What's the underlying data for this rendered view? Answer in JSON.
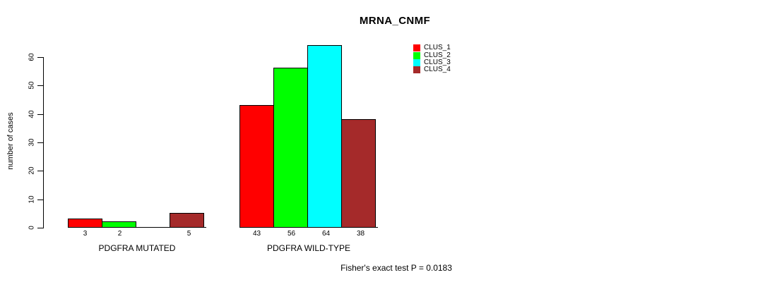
{
  "chart_data": {
    "type": "bar",
    "title": "MRNA_CNMF",
    "ylabel": "number of cases",
    "xlabel": "",
    "ylim": [
      0,
      60
    ],
    "yticks": [
      0,
      10,
      20,
      30,
      40,
      50,
      60
    ],
    "grid": false,
    "legend_position": "top-right",
    "categories": [
      "PDGFRA MUTATED",
      "PDGFRA WILD-TYPE"
    ],
    "series": [
      {
        "name": "CLUS_1",
        "color": "#FF0000",
        "values": [
          3,
          43
        ]
      },
      {
        "name": "CLUS_2",
        "color": "#00FF00",
        "values": [
          2,
          56
        ]
      },
      {
        "name": "CLUS_3",
        "color": "#00FFFF",
        "values": [
          0,
          64
        ]
      },
      {
        "name": "CLUS_4",
        "color": "#A52A2A",
        "values": [
          5,
          38
        ]
      }
    ],
    "bar_labels": [
      [
        "3",
        "2",
        "",
        "5"
      ],
      [
        "43",
        "56",
        "64",
        "38"
      ]
    ],
    "bar_border_color": "#000000",
    "annotation": "Fisher's exact test P = 0.0183"
  }
}
